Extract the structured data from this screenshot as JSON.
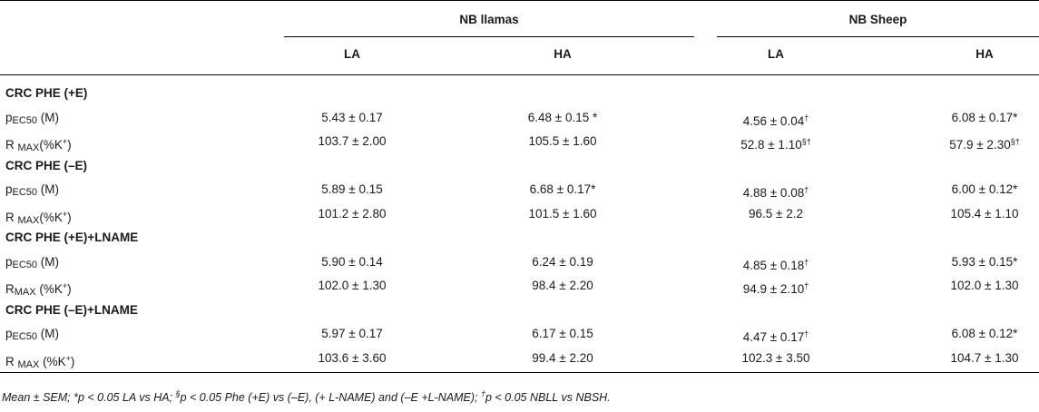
{
  "table": {
    "headers": {
      "group1": "NB llamas",
      "group2": "NB Sheep",
      "sub": [
        "LA",
        "HA",
        "LA",
        "HA"
      ]
    },
    "sections": [
      {
        "title": "CRC PHE (+E)",
        "rows": [
          {
            "label_pre": "p",
            "label_sub": "EC50",
            "label_post": " (M)",
            "values": [
              "5.43 ± 0.17",
              "6.48 ± 0.15 *",
              "4.56 ± 0.04",
              "6.08 ± 0.17*"
            ],
            "sups": [
              "",
              "",
              "†",
              ""
            ]
          },
          {
            "label_pre": "R ",
            "label_sub": "MAX",
            "label_post": "(%K",
            "label_sup": "+",
            "label_end": ")",
            "values": [
              "103.7 ± 2.00",
              "105.5 ± 1.60",
              "52.8 ± 1.10",
              "57.9 ± 2.30"
            ],
            "sups": [
              "",
              "",
              "§†",
              "§†"
            ]
          }
        ]
      },
      {
        "title": "CRC PHE (–E)",
        "rows": [
          {
            "label_pre": "p",
            "label_sub": "EC50",
            "label_post": " (M)",
            "values": [
              "5.89 ± 0.15",
              "6.68 ± 0.17*",
              "4.88 ± 0.08",
              "6.00 ± 0.12*"
            ],
            "sups": [
              "",
              "",
              "†",
              ""
            ]
          },
          {
            "label_pre": "R ",
            "label_sub": "MAX",
            "label_post": "(%K",
            "label_sup": "+",
            "label_end": ")",
            "values": [
              "101.2 ± 2.80",
              "101.5 ± 1.60",
              "96.5 ± 2.2",
              "105.4 ± 1.10"
            ],
            "sups": [
              "",
              "",
              "",
              ""
            ]
          }
        ]
      },
      {
        "title": "CRC PHE (+E)+LNAME",
        "rows": [
          {
            "label_pre": "p",
            "label_sub": "EC50",
            "label_post": " (M)",
            "values": [
              "5.90 ± 0.14",
              "6.24 ± 0.19",
              "4.85 ± 0.18",
              "5.93 ± 0.15*"
            ],
            "sups": [
              "",
              "",
              "†",
              ""
            ]
          },
          {
            "label_pre": "R",
            "label_sub": "MAX",
            "label_post": " (%K",
            "label_sup": "+",
            "label_end": ")",
            "values": [
              "102.0 ± 1.30",
              "98.4 ± 2.20",
              "94.9 ± 2.10",
              "102.0 ± 1.30"
            ],
            "sups": [
              "",
              "",
              "†",
              ""
            ]
          }
        ]
      },
      {
        "title": "CRC PHE (–E)+LNAME",
        "rows": [
          {
            "label_pre": "p",
            "label_sub": "EC50",
            "label_post": " (M)",
            "values": [
              "5.97 ± 0.17",
              "6.17 ± 0.15",
              "4.47 ± 0.17",
              "6.08 ± 0.12*"
            ],
            "sups": [
              "",
              "",
              "†",
              ""
            ]
          },
          {
            "label_pre": "R ",
            "label_sub": "MAX",
            "label_post": " (%K",
            "label_sup": "+",
            "label_end": ")",
            "values": [
              "103.6 ± 3.60",
              "99.4 ± 2.20",
              "102.3 ± 3.50",
              "104.7 ± 1.30"
            ],
            "sups": [
              "",
              "",
              "",
              ""
            ]
          }
        ]
      }
    ]
  },
  "footnote": {
    "part1": "Mean ± SEM; *p < 0.05 LA vs HA; ",
    "sup1": "§",
    "part2": "p < 0.05 Phe (+E) vs (–E), (+ L-NAME) and (–E +L-NAME); ",
    "sup2": "†",
    "part3": "p < 0.05 NBLL vs NBSH."
  }
}
